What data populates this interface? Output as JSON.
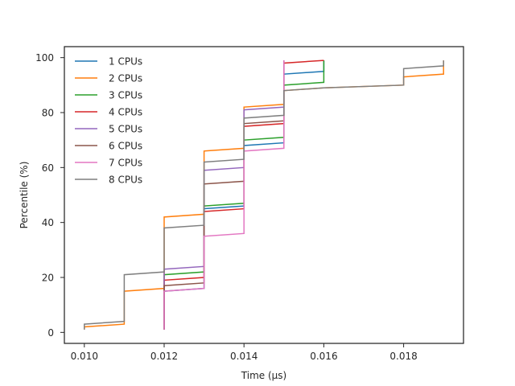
{
  "chart_data": {
    "type": "line",
    "xlabel": "Time (µs)",
    "ylabel": "Percentile (%)",
    "xlim": [
      0.0095,
      0.0195
    ],
    "ylim": [
      -4,
      104
    ],
    "xticks": [
      0.01,
      0.012,
      0.014,
      0.016,
      0.018
    ],
    "xtick_labels": [
      "0.010",
      "0.012",
      "0.014",
      "0.016",
      "0.018"
    ],
    "yticks": [
      0,
      20,
      40,
      60,
      80,
      100
    ],
    "ytick_labels": [
      "0",
      "20",
      "40",
      "60",
      "80",
      "100"
    ],
    "grid": false,
    "legend_position": "top-left",
    "series": [
      {
        "name": "1 CPUs",
        "color": "#1f77b4",
        "points": [
          [
            0.012,
            1
          ],
          [
            0.012,
            15
          ],
          [
            0.013,
            16
          ],
          [
            0.013,
            45
          ],
          [
            0.014,
            46
          ],
          [
            0.014,
            68
          ],
          [
            0.015,
            69
          ],
          [
            0.015,
            94
          ],
          [
            0.016,
            95
          ],
          [
            0.016,
            99
          ]
        ]
      },
      {
        "name": "2 CPUs",
        "color": "#ff7f0e",
        "points": [
          [
            0.01,
            1
          ],
          [
            0.01,
            2
          ],
          [
            0.011,
            3
          ],
          [
            0.011,
            15
          ],
          [
            0.012,
            16
          ],
          [
            0.012,
            42
          ],
          [
            0.013,
            43
          ],
          [
            0.013,
            66
          ],
          [
            0.014,
            67
          ],
          [
            0.014,
            82
          ],
          [
            0.015,
            83
          ],
          [
            0.015,
            88
          ],
          [
            0.016,
            89
          ],
          [
            0.018,
            90
          ],
          [
            0.018,
            93
          ],
          [
            0.019,
            94
          ],
          [
            0.019,
            99
          ]
        ]
      },
      {
        "name": "3 CPUs",
        "color": "#2ca02c",
        "points": [
          [
            0.012,
            1
          ],
          [
            0.012,
            21
          ],
          [
            0.013,
            22
          ],
          [
            0.013,
            46
          ],
          [
            0.014,
            47
          ],
          [
            0.014,
            70
          ],
          [
            0.015,
            71
          ],
          [
            0.015,
            90
          ],
          [
            0.016,
            91
          ],
          [
            0.016,
            99
          ]
        ]
      },
      {
        "name": "4 CPUs",
        "color": "#d62728",
        "points": [
          [
            0.012,
            1
          ],
          [
            0.012,
            19
          ],
          [
            0.013,
            20
          ],
          [
            0.013,
            44
          ],
          [
            0.014,
            45
          ],
          [
            0.014,
            75
          ],
          [
            0.015,
            76
          ],
          [
            0.015,
            98
          ],
          [
            0.016,
            99
          ]
        ]
      },
      {
        "name": "5 CPUs",
        "color": "#9467bd",
        "points": [
          [
            0.012,
            1
          ],
          [
            0.012,
            23
          ],
          [
            0.013,
            24
          ],
          [
            0.013,
            59
          ],
          [
            0.014,
            60
          ],
          [
            0.014,
            81
          ],
          [
            0.015,
            82
          ],
          [
            0.015,
            99
          ]
        ]
      },
      {
        "name": "6 CPUs",
        "color": "#8c564b",
        "points": [
          [
            0.012,
            1
          ],
          [
            0.012,
            17
          ],
          [
            0.013,
            18
          ],
          [
            0.013,
            54
          ],
          [
            0.014,
            55
          ],
          [
            0.014,
            76
          ],
          [
            0.015,
            77
          ],
          [
            0.015,
            99
          ]
        ]
      },
      {
        "name": "7 CPUs",
        "color": "#e377c2",
        "points": [
          [
            0.012,
            1
          ],
          [
            0.012,
            15
          ],
          [
            0.013,
            16
          ],
          [
            0.013,
            35
          ],
          [
            0.014,
            36
          ],
          [
            0.014,
            66
          ],
          [
            0.015,
            67
          ],
          [
            0.015,
            99
          ]
        ]
      },
      {
        "name": "8 CPUs",
        "color": "#7f7f7f",
        "points": [
          [
            0.01,
            1
          ],
          [
            0.01,
            3
          ],
          [
            0.011,
            4
          ],
          [
            0.011,
            21
          ],
          [
            0.012,
            22
          ],
          [
            0.012,
            38
          ],
          [
            0.013,
            39
          ],
          [
            0.013,
            62
          ],
          [
            0.014,
            63
          ],
          [
            0.014,
            78
          ],
          [
            0.015,
            79
          ],
          [
            0.015,
            88
          ],
          [
            0.016,
            89
          ],
          [
            0.018,
            90
          ],
          [
            0.018,
            96
          ],
          [
            0.019,
            97
          ],
          [
            0.019,
            99
          ]
        ]
      }
    ]
  }
}
